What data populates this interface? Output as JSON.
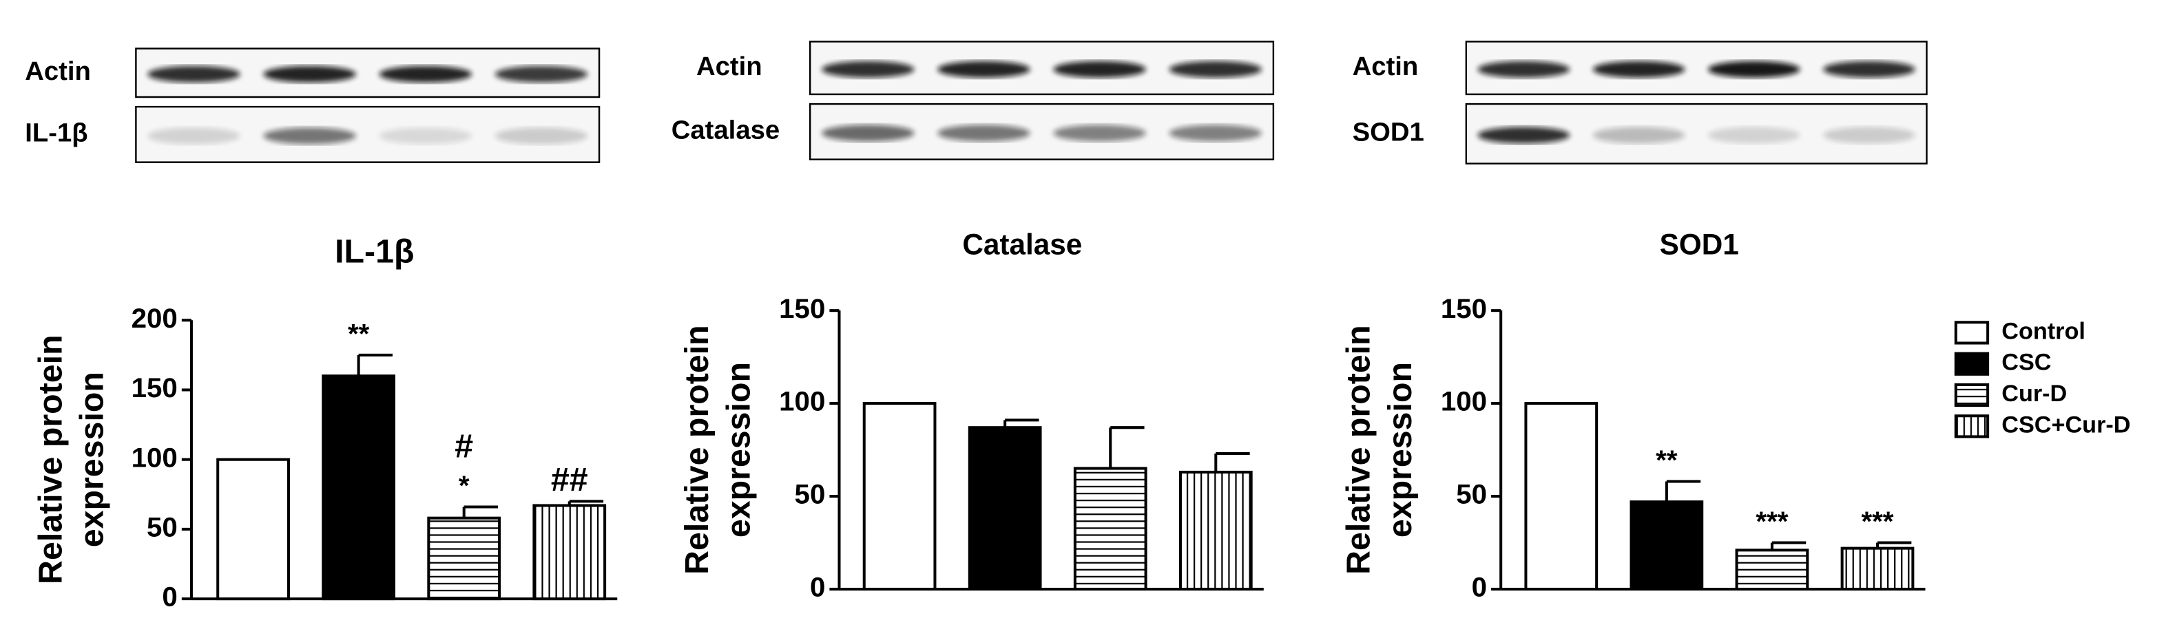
{
  "chart_data": [
    {
      "type": "bar",
      "title": "IL-1β",
      "blot_labels": [
        "Actin",
        "IL-1β"
      ],
      "ylabel": [
        "Relative protein",
        "expression"
      ],
      "values": [
        100,
        160,
        58,
        67
      ],
      "errors": [
        0,
        15,
        8,
        3
      ],
      "annotations": [
        [],
        [
          "**"
        ],
        [
          "#",
          "*"
        ],
        [
          "##"
        ]
      ],
      "ylim": [
        0,
        200
      ],
      "yticks": [
        0,
        50,
        100,
        150,
        200
      ]
    },
    {
      "type": "bar",
      "title": "Catalase",
      "blot_labels": [
        "Actin",
        "Catalase"
      ],
      "ylabel": [
        "Relative protein",
        "expression"
      ],
      "values": [
        100,
        87,
        65,
        63
      ],
      "errors": [
        0,
        4,
        22,
        10
      ],
      "annotations": [
        [],
        [],
        [],
        []
      ],
      "ylim": [
        0,
        150
      ],
      "yticks": [
        0,
        50,
        100,
        150
      ]
    },
    {
      "type": "bar",
      "title": "SOD1",
      "blot_labels": [
        "Actin",
        "SOD1"
      ],
      "ylabel": [
        "Relative protein",
        "expression"
      ],
      "values": [
        100,
        47,
        21,
        22
      ],
      "errors": [
        0,
        11,
        4,
        3
      ],
      "annotations": [
        [],
        [
          "**"
        ],
        [
          "***"
        ],
        [
          "***"
        ]
      ],
      "ylim": [
        0,
        150
      ],
      "yticks": [
        0,
        50,
        100,
        150
      ]
    }
  ],
  "legend": {
    "labels": [
      "Control",
      "CSC",
      "Cur-D",
      "CSC+Cur-D"
    ],
    "fills": [
      "white",
      "black",
      "hstripe",
      "vstripe"
    ]
  }
}
